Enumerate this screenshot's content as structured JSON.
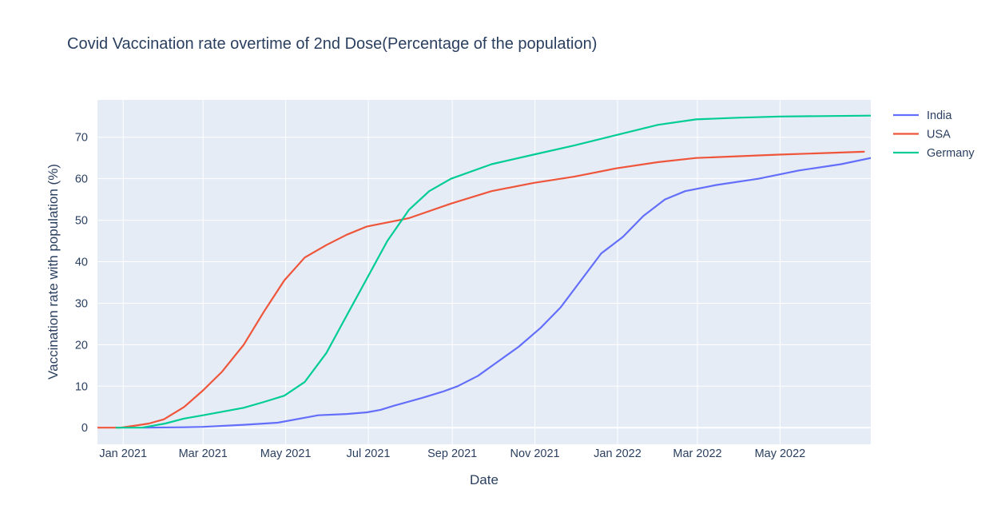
{
  "chart_data": {
    "type": "line",
    "title": "Covid Vaccination rate overtime of 2nd Dose(Percentage of the population)",
    "xlabel": "Date",
    "ylabel": "Vaccination rate with population (%)",
    "x_range": [
      "2020-12-13",
      "2022-07-07"
    ],
    "ylim": [
      -4,
      79
    ],
    "x_ticks": [
      {
        "date": "2021-01-01",
        "label": "Jan 2021"
      },
      {
        "date": "2021-03-01",
        "label": "Mar 2021"
      },
      {
        "date": "2021-05-01",
        "label": "May 2021"
      },
      {
        "date": "2021-07-01",
        "label": "Jul 2021"
      },
      {
        "date": "2021-09-01",
        "label": "Sep 2021"
      },
      {
        "date": "2021-11-01",
        "label": "Nov 2021"
      },
      {
        "date": "2022-01-01",
        "label": "Jan 2022"
      },
      {
        "date": "2022-03-01",
        "label": "Mar 2022"
      },
      {
        "date": "2022-05-01",
        "label": "May 2022"
      }
    ],
    "y_ticks": [
      0,
      10,
      20,
      30,
      40,
      50,
      60,
      70
    ],
    "grid": true,
    "legend_position": "top-right",
    "series": [
      {
        "name": "India",
        "color": "#636efa",
        "points": [
          [
            "2021-01-16",
            0.0
          ],
          [
            "2021-02-15",
            0.1
          ],
          [
            "2021-03-01",
            0.2
          ],
          [
            "2021-03-31",
            0.7
          ],
          [
            "2021-04-25",
            1.2
          ],
          [
            "2021-05-15",
            2.4
          ],
          [
            "2021-05-25",
            3.0
          ],
          [
            "2021-06-15",
            3.3
          ],
          [
            "2021-06-30",
            3.7
          ],
          [
            "2021-07-10",
            4.3
          ],
          [
            "2021-07-20",
            5.3
          ],
          [
            "2021-08-10",
            7.2
          ],
          [
            "2021-08-25",
            8.7
          ],
          [
            "2021-09-05",
            10.0
          ],
          [
            "2021-09-20",
            12.5
          ],
          [
            "2021-10-05",
            16.0
          ],
          [
            "2021-10-20",
            19.5
          ],
          [
            "2021-11-05",
            24.0
          ],
          [
            "2021-11-20",
            29.0
          ],
          [
            "2021-12-05",
            35.5
          ],
          [
            "2021-12-20",
            42.0
          ],
          [
            "2022-01-05",
            46.0
          ],
          [
            "2022-01-20",
            51.0
          ],
          [
            "2022-02-05",
            55.0
          ],
          [
            "2022-02-20",
            57.0
          ],
          [
            "2022-03-15",
            58.5
          ],
          [
            "2022-04-15",
            60.0
          ],
          [
            "2022-05-15",
            62.0
          ],
          [
            "2022-06-15",
            63.5
          ],
          [
            "2022-07-07",
            65.0
          ]
        ]
      },
      {
        "name": "USA",
        "color": "#ef553b",
        "points": [
          [
            "2020-12-13",
            0.0
          ],
          [
            "2020-12-30",
            0.0
          ],
          [
            "2021-01-10",
            0.5
          ],
          [
            "2021-01-20",
            1.0
          ],
          [
            "2021-01-31",
            2.0
          ],
          [
            "2021-02-15",
            5.0
          ],
          [
            "2021-03-01",
            9.0
          ],
          [
            "2021-03-15",
            13.5
          ],
          [
            "2021-03-31",
            20.0
          ],
          [
            "2021-04-15",
            28.0
          ],
          [
            "2021-04-30",
            35.5
          ],
          [
            "2021-05-15",
            41.0
          ],
          [
            "2021-05-31",
            44.0
          ],
          [
            "2021-06-15",
            46.5
          ],
          [
            "2021-06-30",
            48.5
          ],
          [
            "2021-07-31",
            50.5
          ],
          [
            "2021-08-31",
            54.0
          ],
          [
            "2021-09-30",
            57.0
          ],
          [
            "2021-10-31",
            59.0
          ],
          [
            "2021-11-30",
            60.5
          ],
          [
            "2021-12-31",
            62.5
          ],
          [
            "2022-01-31",
            64.0
          ],
          [
            "2022-02-28",
            65.0
          ],
          [
            "2022-04-30",
            65.8
          ],
          [
            "2022-07-02",
            66.5
          ]
        ]
      },
      {
        "name": "Germany",
        "color": "#00cc96",
        "points": [
          [
            "2020-12-27",
            0.0
          ],
          [
            "2021-01-15",
            0.0
          ],
          [
            "2021-02-01",
            1.0
          ],
          [
            "2021-02-15",
            2.2
          ],
          [
            "2021-03-01",
            3.0
          ],
          [
            "2021-03-31",
            4.8
          ],
          [
            "2021-04-15",
            6.2
          ],
          [
            "2021-04-30",
            7.7
          ],
          [
            "2021-05-15",
            11.0
          ],
          [
            "2021-05-31",
            18.0
          ],
          [
            "2021-06-15",
            27.0
          ],
          [
            "2021-06-30",
            36.0
          ],
          [
            "2021-07-15",
            45.0
          ],
          [
            "2021-07-31",
            52.5
          ],
          [
            "2021-08-15",
            57.0
          ],
          [
            "2021-08-31",
            60.0
          ],
          [
            "2021-09-30",
            63.5
          ],
          [
            "2021-10-31",
            65.8
          ],
          [
            "2021-11-30",
            68.0
          ],
          [
            "2021-12-31",
            70.5
          ],
          [
            "2022-01-31",
            73.0
          ],
          [
            "2022-02-28",
            74.3
          ],
          [
            "2022-03-31",
            74.7
          ],
          [
            "2022-05-01",
            75.0
          ],
          [
            "2022-07-07",
            75.2
          ]
        ]
      }
    ]
  }
}
